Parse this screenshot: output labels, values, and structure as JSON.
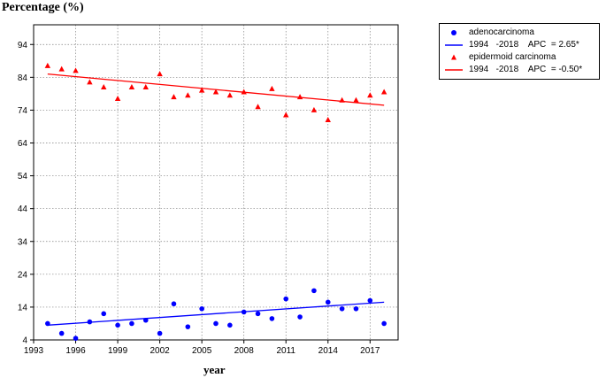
{
  "chart_data": {
    "type": "scatter",
    "title": "",
    "ylabel": "Percentage (%)",
    "xlabel": "year",
    "xlim": [
      1993,
      2019
    ],
    "ylim": [
      4,
      100
    ],
    "xticks": [
      "1993",
      "1996",
      "1999",
      "2002",
      "2005",
      "2008",
      "2011",
      "2014",
      "2017"
    ],
    "yticks": [
      "4",
      "14",
      "24",
      "34",
      "44",
      "54",
      "64",
      "74",
      "84",
      "94"
    ],
    "grid": true,
    "legend_position": "top-right, outside plot",
    "series": [
      {
        "name": "adenocarcinoma",
        "marker": "circle",
        "color": "#0000ff",
        "x": [
          1994,
          1995,
          1996,
          1997,
          1998,
          1999,
          2000,
          2001,
          2002,
          2003,
          2004,
          2005,
          2006,
          2007,
          2008,
          2009,
          2010,
          2011,
          2012,
          2013,
          2014,
          2015,
          2016,
          2017,
          2018
        ],
        "y": [
          9,
          6,
          4.5,
          9.5,
          12,
          8.5,
          9,
          10,
          6,
          15,
          8,
          13.5,
          9,
          8.5,
          12.5,
          12,
          10.5,
          16.5,
          11,
          19,
          15.5,
          13.5,
          13.5,
          16,
          9
        ]
      },
      {
        "name": "epidermoid carcinoma",
        "marker": "triangle",
        "color": "#ff0000",
        "x": [
          1994,
          1995,
          1996,
          1997,
          1998,
          1999,
          2000,
          2001,
          2002,
          2003,
          2004,
          2005,
          2006,
          2007,
          2008,
          2009,
          2010,
          2011,
          2012,
          2013,
          2014,
          2015,
          2016,
          2017,
          2018
        ],
        "y": [
          87.5,
          86.5,
          86,
          82.5,
          81,
          77.5,
          81,
          81,
          85,
          78,
          78.5,
          80,
          79.5,
          78.5,
          79.5,
          75,
          80.5,
          72.5,
          78,
          74,
          71,
          77,
          77,
          78.5,
          79.5
        ]
      }
    ],
    "trendlines": [
      {
        "series": "adenocarcinoma",
        "label": "1994   -2018    APC  = 2.65*",
        "color": "#0000ff",
        "x": [
          1994,
          2018
        ],
        "y": [
          8.5,
          15.5
        ]
      },
      {
        "series": "epidermoid carcinoma",
        "label": "1994   -2018    APC  = -0.50*",
        "color": "#ff0000",
        "x": [
          1994,
          2018
        ],
        "y": [
          85,
          75.5
        ]
      }
    ]
  },
  "legend": {
    "items": [
      {
        "label": "adenocarcinoma",
        "kind": "marker",
        "shape": "circle",
        "color": "#0000ff"
      },
      {
        "label": "1994   -2018    APC  = 2.65*",
        "kind": "line",
        "color": "#0000ff"
      },
      {
        "label": "epidermoid carcinoma",
        "kind": "marker",
        "shape": "triangle",
        "color": "#ff0000"
      },
      {
        "label": "1994   -2018    APC  = -0.50*",
        "kind": "line",
        "color": "#ff0000"
      }
    ]
  }
}
